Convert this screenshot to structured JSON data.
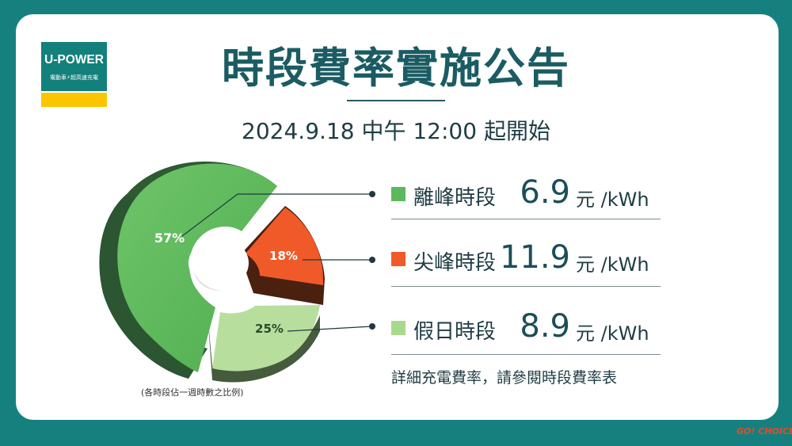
{
  "logo": {
    "name": "U-POWER",
    "tagline": "電動車⚡超高速充電"
  },
  "header": {
    "title": "時段費率實施公告",
    "subtitle": "2024.9.18 中午 12:00 起開始"
  },
  "rates": [
    {
      "label": "離峰時段",
      "price": "6.9",
      "unit": "元 /kWh",
      "color": "#5cb85c"
    },
    {
      "label": "尖峰時段",
      "price": "11.9",
      "unit": "元 /kWh",
      "color": "#f05a28"
    },
    {
      "label": "假日時段",
      "price": "8.9",
      "unit": "元 /kWh",
      "color": "#a9d98d"
    }
  ],
  "footnote_right": "詳細充電費率，請參閱時段費率表",
  "chart_data": {
    "type": "pie",
    "categories": [
      "離峰時段",
      "尖峰時段",
      "假日時段"
    ],
    "values": [
      57,
      18,
      25
    ],
    "labels": [
      "57%",
      "18%",
      "25%"
    ],
    "colors": [
      "#5cb85c",
      "#f05a28",
      "#b7de9d"
    ],
    "donut": true,
    "exploded": true,
    "note": "(各時段佔一週時數之比例)"
  },
  "watermark": "GO! CHOICE"
}
